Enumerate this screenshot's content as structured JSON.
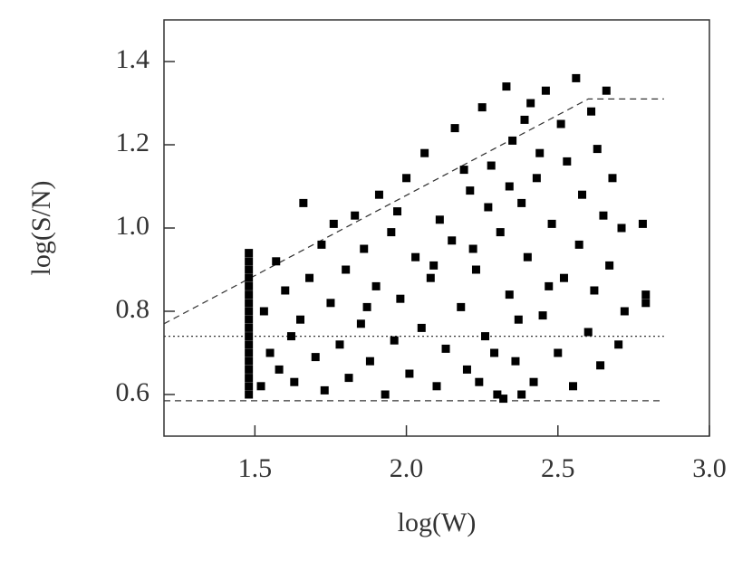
{
  "chart_data": {
    "type": "scatter",
    "x_label": "log(W)",
    "y_label": "log(S/N)",
    "xlim": [
      1.2,
      3.0
    ],
    "ylim": [
      0.5,
      1.5
    ],
    "xticks": [
      {
        "value": 1.5,
        "label": "1.5"
      },
      {
        "value": 2.0,
        "label": "2.0"
      },
      {
        "value": 2.5,
        "label": "2.5"
      },
      {
        "value": 3.0,
        "label": "3.0"
      }
    ],
    "yticks": [
      {
        "value": 0.6,
        "label": "0.6"
      },
      {
        "value": 0.8,
        "label": "0.8"
      },
      {
        "value": 1.0,
        "label": "1.0"
      },
      {
        "value": 1.2,
        "label": "1.2"
      },
      {
        "value": 1.4,
        "label": "1.4"
      }
    ],
    "color": "#000000",
    "x": [
      1.48,
      1.48,
      1.48,
      1.48,
      1.48,
      1.48,
      1.48,
      1.48,
      1.48,
      1.48,
      1.48,
      1.48,
      1.48,
      1.48,
      1.48,
      1.48,
      1.48,
      1.48,
      1.52,
      1.53,
      1.55,
      1.57,
      1.58,
      1.6,
      1.62,
      1.63,
      1.65,
      1.66,
      1.68,
      1.7,
      1.72,
      1.73,
      1.75,
      1.76,
      1.78,
      1.8,
      1.81,
      1.83,
      1.85,
      1.86,
      1.88,
      1.9,
      1.91,
      1.93,
      1.95,
      1.96,
      1.98,
      2.0,
      2.01,
      2.03,
      2.05,
      2.06,
      2.08,
      2.1,
      2.11,
      2.13,
      2.15,
      2.16,
      2.18,
      2.2,
      2.21,
      2.23,
      2.25,
      2.26,
      2.28,
      2.3,
      2.31,
      2.33,
      2.34,
      2.35,
      2.36,
      2.38,
      2.4,
      2.41,
      2.42,
      2.43,
      2.45,
      2.46,
      2.48,
      2.5,
      2.51,
      2.52,
      2.53,
      2.55,
      2.56,
      2.57,
      2.58,
      2.6,
      2.61,
      2.62,
      2.63,
      2.64,
      2.65,
      2.66,
      2.67,
      2.68,
      2.7,
      2.71,
      2.72,
      2.78,
      2.79,
      2.79,
      2.32,
      2.38,
      2.22,
      2.27,
      2.37,
      2.44,
      2.29,
      2.39,
      2.47,
      2.34,
      1.97,
      1.87,
      2.09,
      2.19,
      2.24
    ],
    "values": [
      0.6,
      0.62,
      0.64,
      0.66,
      0.68,
      0.7,
      0.72,
      0.74,
      0.76,
      0.78,
      0.8,
      0.82,
      0.84,
      0.86,
      0.88,
      0.9,
      0.92,
      0.94,
      0.62,
      0.8,
      0.7,
      0.92,
      0.66,
      0.85,
      0.74,
      0.63,
      0.78,
      1.06,
      0.88,
      0.69,
      0.96,
      0.61,
      0.82,
      1.01,
      0.72,
      0.9,
      0.64,
      1.03,
      0.77,
      0.95,
      0.68,
      0.86,
      1.08,
      0.6,
      0.99,
      0.73,
      0.83,
      1.12,
      0.65,
      0.93,
      0.76,
      1.18,
      0.88,
      0.62,
      1.02,
      0.71,
      0.97,
      1.24,
      0.81,
      0.66,
      1.09,
      0.9,
      1.29,
      0.74,
      1.15,
      0.6,
      0.99,
      1.34,
      0.84,
      1.21,
      0.68,
      1.06,
      0.93,
      1.3,
      0.63,
      1.12,
      0.79,
      1.33,
      1.01,
      0.7,
      1.25,
      0.88,
      1.16,
      0.62,
      1.36,
      0.96,
      1.08,
      0.75,
      1.28,
      0.85,
      1.19,
      0.67,
      1.03,
      1.33,
      0.91,
      1.12,
      0.72,
      1.0,
      0.8,
      1.01,
      0.84,
      0.82,
      0.59,
      0.6,
      0.95,
      1.05,
      0.78,
      1.18,
      0.7,
      1.26,
      0.86,
      1.1,
      1.04,
      0.81,
      0.91,
      1.14,
      0.63
    ],
    "reference_lines": [
      {
        "x": [
          1.2,
          2.6,
          2.85
        ],
        "y": [
          0.77,
          1.31,
          1.31
        ],
        "style": "dashed"
      },
      {
        "x": [
          1.2,
          2.85
        ],
        "y": [
          0.74,
          0.74
        ],
        "style": "dotted"
      },
      {
        "x": [
          1.2,
          2.85
        ],
        "y": [
          0.585,
          0.585
        ],
        "style": "dashed"
      }
    ]
  }
}
